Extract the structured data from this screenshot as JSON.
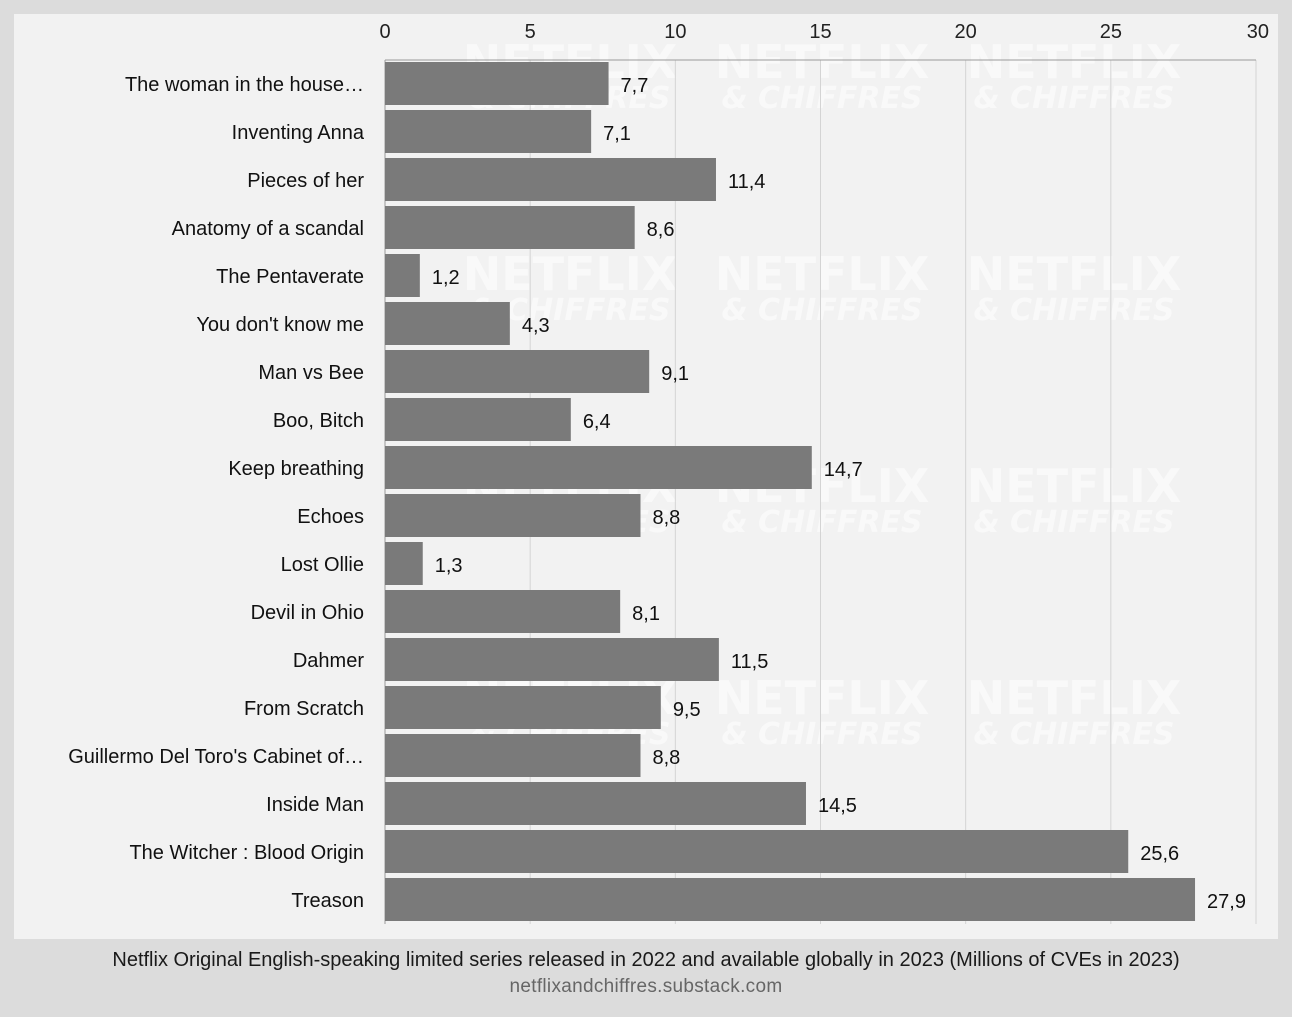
{
  "footer": {
    "caption": "Netflix Original English-speaking limited series released in 2022 and available globally in 2023 (Millions of CVEs in 2023)",
    "source": "netflixandchiffres.substack.com"
  },
  "watermark": {
    "line1": "NETFLIX",
    "line2": "& CHIFFRES"
  },
  "chart_data": {
    "type": "bar",
    "orientation": "horizontal",
    "title": "",
    "xlabel": "",
    "ylabel": "",
    "xlim": [
      0,
      30
    ],
    "x_ticks": [
      0,
      5,
      10,
      15,
      20,
      25,
      30
    ],
    "x_axis_position": "top",
    "grid": true,
    "bar_color": "#7a7a7a",
    "categories": [
      "The woman in the house…",
      "Inventing Anna",
      "Pieces of her",
      "Anatomy of a scandal",
      "The Pentaverate",
      "You don't know me",
      "Man vs Bee",
      "Boo, Bitch",
      "Keep breathing",
      "Echoes",
      "Lost Ollie",
      "Devil in Ohio",
      "Dahmer",
      "From Scratch",
      "Guillermo Del Toro's Cabinet of…",
      "Inside Man",
      "The Witcher : Blood Origin",
      "Treason"
    ],
    "values": [
      7.7,
      7.1,
      11.4,
      8.6,
      1.2,
      4.3,
      9.1,
      6.4,
      14.7,
      8.8,
      1.3,
      8.1,
      11.5,
      9.5,
      8.8,
      14.5,
      25.6,
      27.9
    ],
    "value_labels": [
      "7,7",
      "7,1",
      "11,4",
      "8,6",
      "1,2",
      "4,3",
      "9,1",
      "6,4",
      "14,7",
      "8,8",
      "1,3",
      "8,1",
      "11,5",
      "9,5",
      "8,8",
      "14,5",
      "25,6",
      "27,9"
    ]
  }
}
